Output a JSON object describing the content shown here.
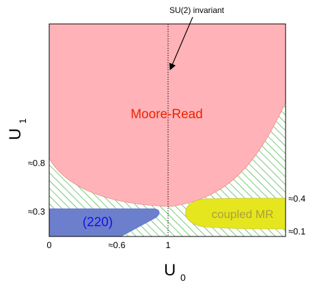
{
  "colors": {
    "moore_read_fill": "#ffb3b8",
    "moore_read_label": "#ee2200",
    "phase_220_fill": "#6b7fcc",
    "phase_220_label": "#1a10e0",
    "coupled_mr_fill": "#e6e61e",
    "coupled_mr_label": "#a9a13a",
    "hatch": "#2faa2f",
    "axis": "#000000"
  },
  "annotation": {
    "label": "SU(2) invariant"
  },
  "regions": {
    "moore_read": "Moore-Read",
    "phase_220": "(220)",
    "coupled_mr": "coupled MR"
  },
  "axes": {
    "x_label_main": "U",
    "x_label_sub": "0",
    "y_label_main": "U",
    "y_label_sub": "1",
    "x_ticks": [
      "0",
      "≈0.6",
      "1"
    ],
    "y_ticks_left": [
      "≈0.8",
      "≈0.3"
    ],
    "y_ticks_right": [
      "≈0.4",
      "≈0.1"
    ]
  }
}
